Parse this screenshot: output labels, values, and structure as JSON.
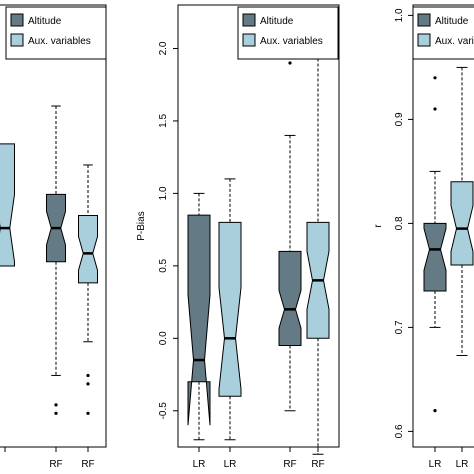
{
  "colors": {
    "altitude": "#647a84",
    "aux": "#a9cedc",
    "frame": "#000000",
    "whisker": "#000000"
  },
  "legend_labels": [
    "Altitude",
    "Aux. variables"
  ],
  "chart_data": [
    {
      "type": "box",
      "panel": "left",
      "title": "",
      "ylabel": "",
      "ylim": [
        -0.05,
        1.0
      ],
      "ticks": [],
      "categories": [
        "",
        "",
        "RF",
        "RF"
      ],
      "legend": {
        "position": "top-left",
        "labels": [
          "Altitude",
          "Aux. variables"
        ]
      },
      "boxes": [
        {
          "series": "Altitude",
          "category": "",
          "min": null,
          "q1": null,
          "median": null,
          "q3": null,
          "max": null,
          "notch": null,
          "outliers": []
        },
        {
          "series": "Aux. variables",
          "category": "",
          "min": null,
          "q1": 0.38,
          "median": 0.47,
          "q3": 0.67,
          "max": null,
          "notch": 0.08,
          "outliers": []
        },
        {
          "series": "Altitude",
          "category": "RF",
          "min": 0.12,
          "q1": 0.39,
          "median": 0.47,
          "q3": 0.55,
          "max": 0.76,
          "notch": 0.04,
          "outliers": [
            0.05,
            0.03
          ]
        },
        {
          "series": "Aux. variables",
          "category": "RF",
          "min": 0.2,
          "q1": 0.34,
          "median": 0.41,
          "q3": 0.5,
          "max": 0.62,
          "notch": 0.04,
          "outliers": [
            0.12,
            0.1,
            0.03
          ]
        }
      ]
    },
    {
      "type": "box",
      "panel": "middle",
      "title": "",
      "ylabel": "P-Bias",
      "ylim": [
        -0.75,
        2.3
      ],
      "ticks": [
        "-0.5",
        "0.0",
        "0.5",
        "1.0",
        "1.5",
        "2.0"
      ],
      "categories": [
        "LR",
        "LR",
        "RF",
        "RF"
      ],
      "legend": {
        "position": "top-right",
        "labels": [
          "Altitude",
          "Aux. variables"
        ]
      },
      "boxes": [
        {
          "series": "Altitude",
          "category": "LR",
          "min": -0.7,
          "q1": -0.3,
          "median": -0.15,
          "q3": 0.85,
          "max": 1.0,
          "notch": 0.45,
          "outliers": []
        },
        {
          "series": "Aux. variables",
          "category": "LR",
          "min": -0.7,
          "q1": -0.4,
          "median": 0.0,
          "q3": 0.8,
          "max": 1.1,
          "notch": 0.35,
          "outliers": []
        },
        {
          "series": "Altitude",
          "category": "RF",
          "min": -0.5,
          "q1": -0.05,
          "median": 0.2,
          "q3": 0.6,
          "max": 1.4,
          "notch": 0.13,
          "outliers": [
            1.9
          ]
        },
        {
          "series": "Aux. variables",
          "category": "RF",
          "min": -0.8,
          "q1": 0.0,
          "median": 0.4,
          "q3": 0.8,
          "max": 2.0,
          "notch": 0.2,
          "outliers": []
        }
      ]
    },
    {
      "type": "box",
      "panel": "right",
      "title": "",
      "ylabel": "r",
      "ylim": [
        0.585,
        1.01
      ],
      "ticks": [
        "0.6",
        "0.7",
        "0.8",
        "0.9",
        "1.0"
      ],
      "categories": [
        "LR",
        "LR"
      ],
      "legend": {
        "position": "top-right",
        "labels": [
          "Altitude",
          "Aux. variables"
        ]
      },
      "boxes": [
        {
          "series": "Altitude",
          "category": "LR",
          "min": 0.7,
          "q1": 0.735,
          "median": 0.775,
          "q3": 0.8,
          "max": 0.85,
          "notch": 0.02,
          "outliers": [
            0.94,
            0.91,
            0.62
          ]
        },
        {
          "series": "Aux. variables",
          "category": "LR",
          "min": 0.673,
          "q1": 0.76,
          "median": 0.795,
          "q3": 0.84,
          "max": 0.95,
          "notch": 0.022,
          "outliers": []
        }
      ]
    }
  ]
}
